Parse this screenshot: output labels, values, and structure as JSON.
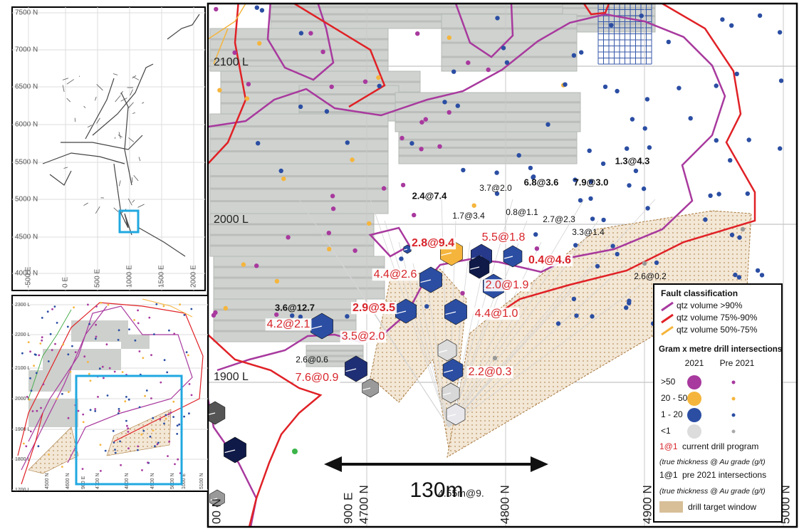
{
  "main_map": {
    "level_labels": [
      "2100 L",
      "2000 L",
      "1900 L"
    ],
    "grid_labels": [
      "00 N",
      "900 E",
      "4700 N",
      "4800 N",
      "4900 N",
      "5000 N"
    ],
    "current_intersections": [
      "2.8@9.4",
      "5.5@1.8",
      "0.4@4.6",
      "4.4@2.6",
      "2.0@1.9",
      "2.9@3.5",
      "4.4@1.0",
      "4.2@2.1",
      "3.5@2.0",
      "7.6@0.9",
      "2.2@0.3"
    ],
    "pre2021_intersections": [
      "2.4@7.4",
      "3.7@2.0",
      "6.8@3.6",
      "7.9@3.0",
      "1.3@4.3",
      "1.7@3.4",
      "0.8@1.1",
      "2.7@2.3",
      "3.3@1.4",
      "2.6@0.2",
      "3.6@12.7",
      "2.6@0.6"
    ],
    "other_labels": [
      "4.55m@9."
    ],
    "scale_label": "130m"
  },
  "legend": {
    "fault_title": "Fault classification",
    "fault_items": [
      "qtz volume >90%",
      "qtz volume 75%-90%",
      "qtz volume 50%-75%"
    ],
    "drill_title": "Gram x metre drill intersections",
    "column_headers": [
      "2021",
      "Pre 2021"
    ],
    "grade_classes": [
      ">50",
      "20 - 50",
      "1 - 20",
      "<1"
    ],
    "current_sample": "1@1",
    "current_text": "current drill program",
    "current_note": "(true thickness @ Au grade (g/t)",
    "pre_sample": "1@1",
    "pre_text": "pre 2021 intersections",
    "pre_note": "(true thickness @ Au grade (g/t)",
    "target_text": "drill target window"
  },
  "overview_inset": {
    "northing_labels": [
      "7500 N",
      "7000 N",
      "6500 N",
      "6000 N",
      "5500 N",
      "5000 N",
      "4500 N",
      "4000 N"
    ],
    "easting_labels": [
      "-500 E",
      "0 E",
      "500 E",
      "1000 E",
      "1500 E",
      "2000 E"
    ]
  },
  "section_inset": {
    "level_labels": [
      "2300 L",
      "2200 L",
      "2100 L",
      "2000 L",
      "1900 L",
      "1800 L",
      "1700 L"
    ],
    "northing_labels": [
      "4500 N",
      "4600 N",
      "4700 N",
      "4800 N",
      "4900 N",
      "5000 N",
      "5100 N"
    ],
    "easting_labels": [
      "900 E",
      "1000 E"
    ]
  }
}
